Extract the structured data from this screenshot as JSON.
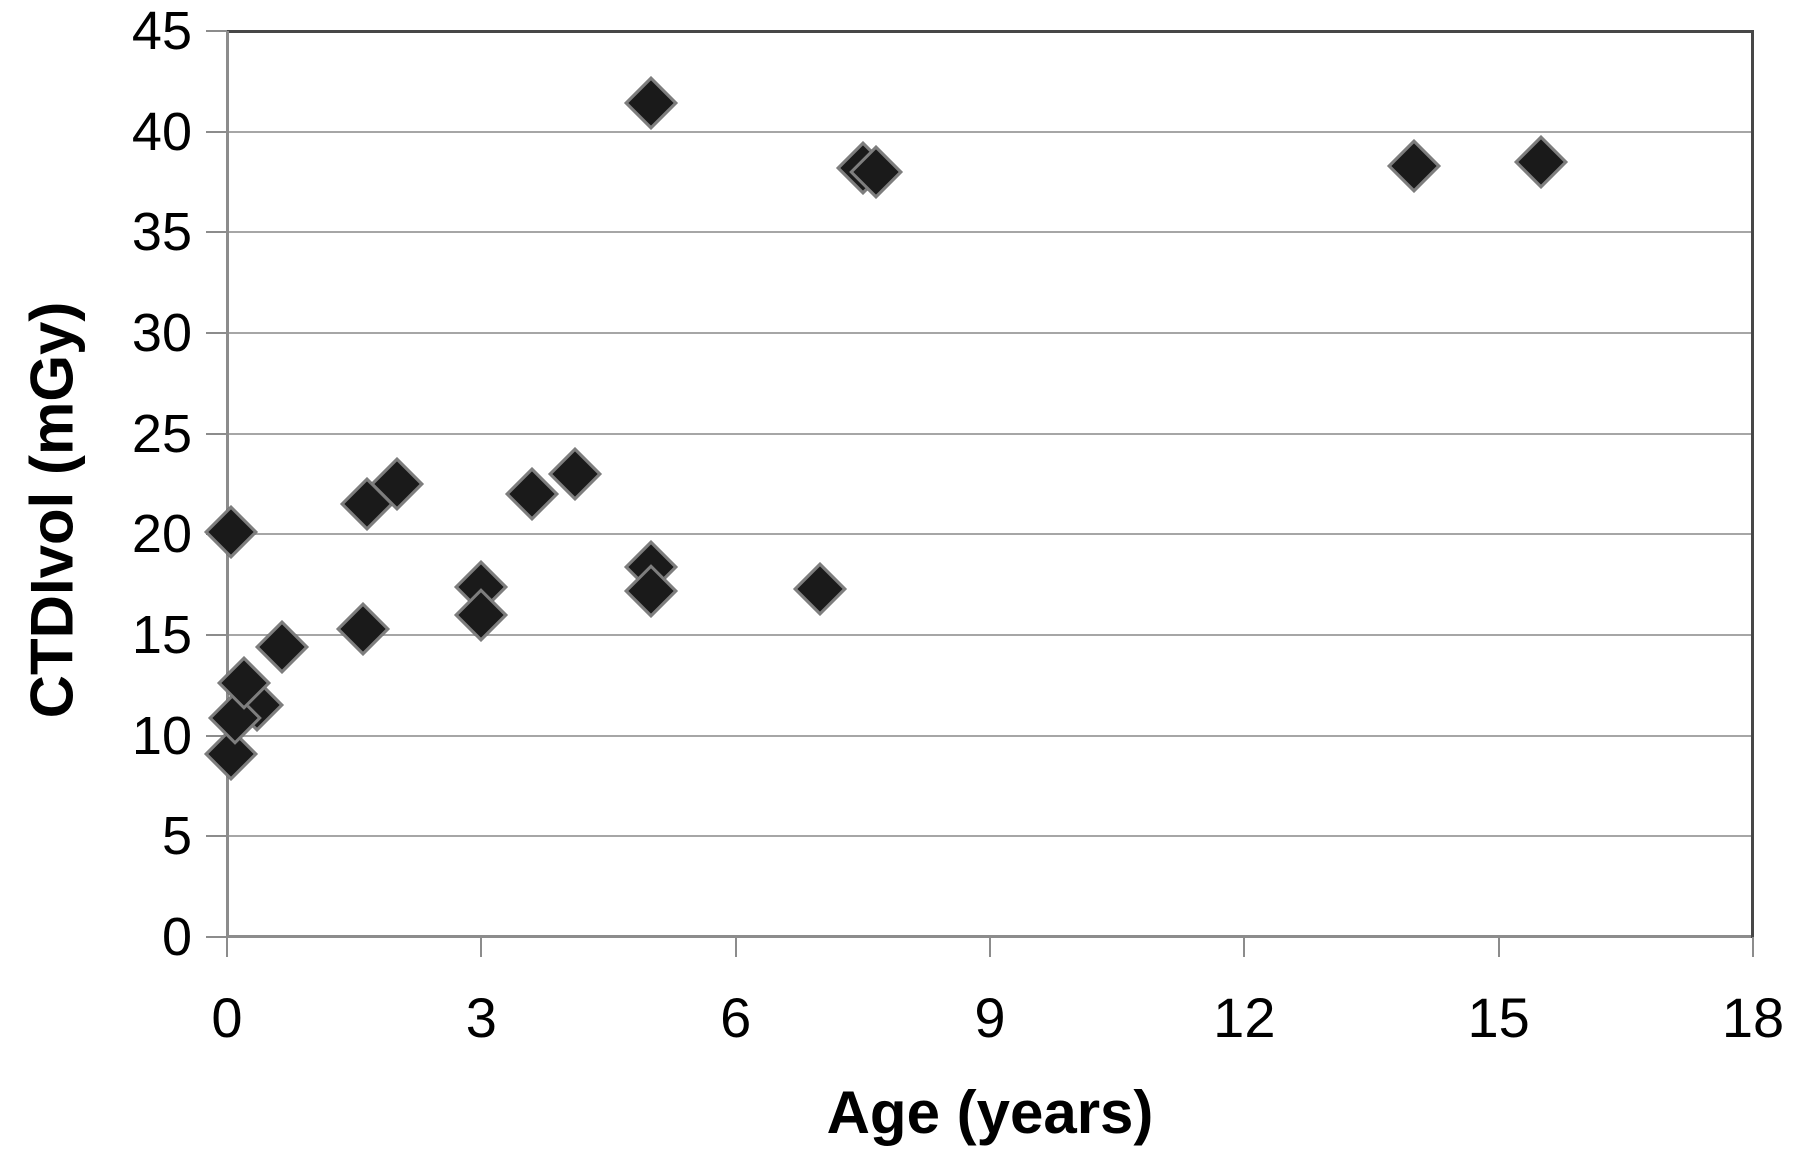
{
  "chart_data": {
    "type": "scatter",
    "title": "",
    "xlabel": "Age (years)",
    "ylabel": "CTDIvol (mGy)",
    "xlim": [
      0,
      18
    ],
    "ylim": [
      0,
      45
    ],
    "x_ticks": [
      0,
      3,
      6,
      9,
      12,
      15,
      18
    ],
    "y_ticks": [
      0,
      5,
      10,
      15,
      20,
      25,
      30,
      35,
      40,
      45
    ],
    "grid": "horizontal gridlines only",
    "legend": "none",
    "marker": "diamond",
    "colors": {
      "marker_fill": "#1a1a1a",
      "marker_edge": "#7e7e7e",
      "gridline": "#a6a6a6",
      "axis": "#8c8c8c",
      "frame": "#474747",
      "text": "#000000",
      "background": "#ffffff"
    },
    "series": [
      {
        "name": "CTDIvol vs Age",
        "points": [
          {
            "x": 0.35,
            "y": 11.5
          },
          {
            "x": 0.05,
            "y": 9.1
          },
          {
            "x": 0.1,
            "y": 10.9
          },
          {
            "x": 0.2,
            "y": 12.6
          },
          {
            "x": 0.65,
            "y": 14.4
          },
          {
            "x": 0.05,
            "y": 20.1
          },
          {
            "x": 1.6,
            "y": 15.3
          },
          {
            "x": 1.65,
            "y": 21.5
          },
          {
            "x": 2.0,
            "y": 22.5
          },
          {
            "x": 3.0,
            "y": 17.4
          },
          {
            "x": 3.0,
            "y": 16.0
          },
          {
            "x": 3.6,
            "y": 22.0
          },
          {
            "x": 4.1,
            "y": 23.0
          },
          {
            "x": 5.0,
            "y": 41.4
          },
          {
            "x": 5.0,
            "y": 18.4
          },
          {
            "x": 5.0,
            "y": 17.2
          },
          {
            "x": 7.0,
            "y": 17.3
          },
          {
            "x": 7.5,
            "y": 38.2
          },
          {
            "x": 7.65,
            "y": 38.0
          },
          {
            "x": 14.0,
            "y": 38.3
          },
          {
            "x": 15.5,
            "y": 38.5
          }
        ]
      }
    ]
  }
}
